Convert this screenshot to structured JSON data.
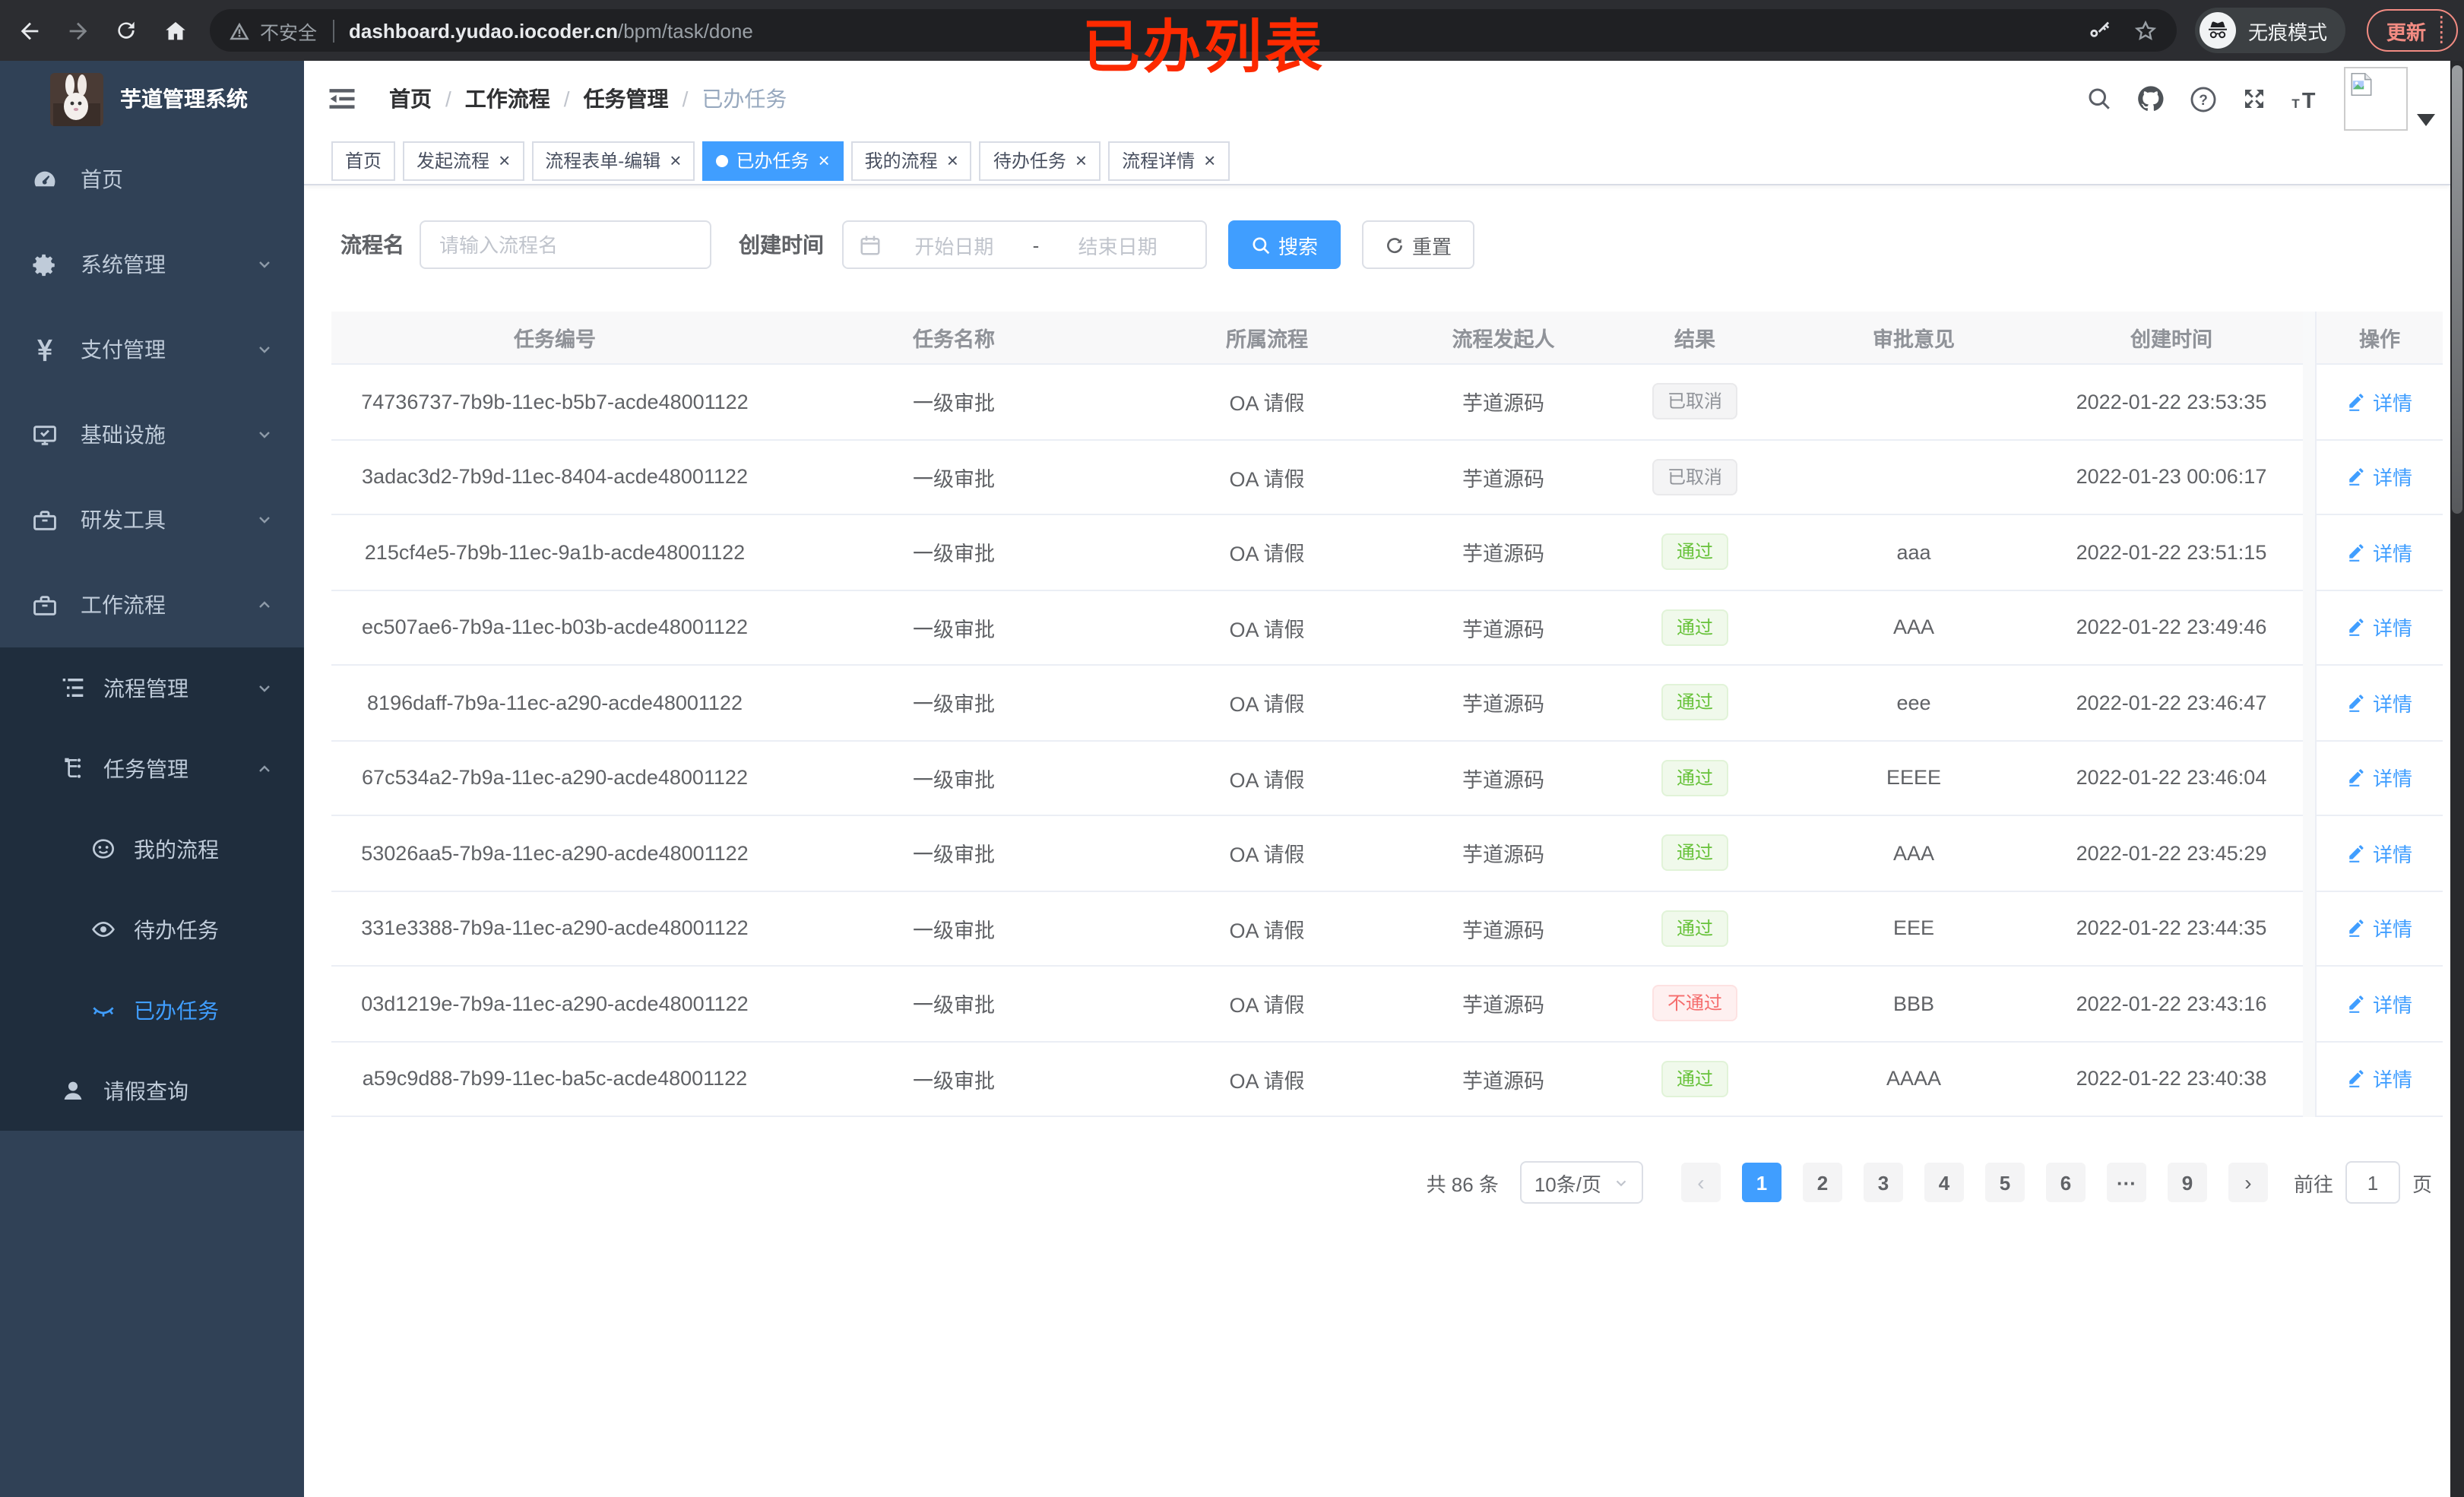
{
  "browser": {
    "security_label": "不安全",
    "url_host": "dashboard.yudao.iocoder.cn",
    "url_path": "/bpm/task/done",
    "incognito_label": "无痕模式",
    "update_label": "更新"
  },
  "annotation": {
    "text": "已办列表",
    "color": "#fd2a00"
  },
  "colors": {
    "accent": "#409eff",
    "success": "#67c23a",
    "danger": "#f56c6c",
    "info": "#909399",
    "sidebar_bg": "#304156",
    "submenu_bg": "#1f2d3d",
    "update": "#f28b82"
  },
  "sidebar": {
    "app_title": "芋道管理系统",
    "menu": [
      {
        "key": "home",
        "label": "首页",
        "icon": "dashboard-icon",
        "arrow": ""
      },
      {
        "key": "system",
        "label": "系统管理",
        "icon": "gear-icon",
        "arrow": "down"
      },
      {
        "key": "payment",
        "label": "支付管理",
        "icon": "yen-icon",
        "arrow": "down"
      },
      {
        "key": "infra",
        "label": "基础设施",
        "icon": "monitor-icon",
        "arrow": "down"
      },
      {
        "key": "devtools",
        "label": "研发工具",
        "icon": "toolbox-icon",
        "arrow": "down"
      },
      {
        "key": "workflow",
        "label": "工作流程",
        "icon": "toolbox-icon",
        "arrow": "up"
      }
    ],
    "submenu": [
      {
        "key": "process-mgmt",
        "label": "流程管理",
        "icon": "tree-table-icon",
        "arrow": "down",
        "indent": 2,
        "active": false
      },
      {
        "key": "task-mgmt",
        "label": "任务管理",
        "icon": "tree-icon",
        "arrow": "up",
        "indent": 2,
        "active": false
      },
      {
        "key": "my-process",
        "label": "我的流程",
        "icon": "face-icon",
        "arrow": "",
        "indent": 3,
        "active": false
      },
      {
        "key": "todo-tasks",
        "label": "待办任务",
        "icon": "eye-open-icon",
        "arrow": "",
        "indent": 3,
        "active": false
      },
      {
        "key": "done-tasks",
        "label": "已办任务",
        "icon": "eye-closed-icon",
        "arrow": "",
        "indent": 3,
        "active": true
      },
      {
        "key": "leave-query",
        "label": "请假查询",
        "icon": "user-icon",
        "arrow": "",
        "indent": 2,
        "active": false
      }
    ]
  },
  "header": {
    "breadcrumb": [
      "首页",
      "工作流程",
      "任务管理",
      "已办任务"
    ]
  },
  "tabs": [
    {
      "key": "home",
      "label": "首页",
      "closable": false,
      "active": false
    },
    {
      "key": "start-process",
      "label": "发起流程",
      "closable": true,
      "active": false
    },
    {
      "key": "form-edit",
      "label": "流程表单-编辑",
      "closable": true,
      "active": false
    },
    {
      "key": "done-tasks",
      "label": "已办任务",
      "closable": true,
      "active": true
    },
    {
      "key": "my-process",
      "label": "我的流程",
      "closable": true,
      "active": false
    },
    {
      "key": "todo-tasks",
      "label": "待办任务",
      "closable": true,
      "active": false
    },
    {
      "key": "process-detail",
      "label": "流程详情",
      "closable": true,
      "active": false
    }
  ],
  "filters": {
    "name_label": "流程名",
    "name_placeholder": "请输入流程名",
    "time_label": "创建时间",
    "start_placeholder": "开始日期",
    "range_separator": "-",
    "end_placeholder": "结束日期",
    "search_label": "搜索",
    "reset_label": "重置"
  },
  "table": {
    "columns": [
      "任务编号",
      "任务名称",
      "所属流程",
      "流程发起人",
      "结果",
      "审批意见",
      "创建时间",
      "操作"
    ],
    "action_label": "详情",
    "rows": [
      {
        "id": "74736737-7b9b-11ec-b5b7-acde48001122",
        "task_name": "一级审批",
        "process": "OA 请假",
        "starter": "芋道源码",
        "result": "已取消",
        "result_type": "info",
        "comment": "",
        "created": "2022-01-22 23:53:35"
      },
      {
        "id": "3adac3d2-7b9d-11ec-8404-acde48001122",
        "task_name": "一级审批",
        "process": "OA 请假",
        "starter": "芋道源码",
        "result": "已取消",
        "result_type": "info",
        "comment": "",
        "created": "2022-01-23 00:06:17"
      },
      {
        "id": "215cf4e5-7b9b-11ec-9a1b-acde48001122",
        "task_name": "一级审批",
        "process": "OA 请假",
        "starter": "芋道源码",
        "result": "通过",
        "result_type": "success",
        "comment": "aaa",
        "created": "2022-01-22 23:51:15"
      },
      {
        "id": "ec507ae6-7b9a-11ec-b03b-acde48001122",
        "task_name": "一级审批",
        "process": "OA 请假",
        "starter": "芋道源码",
        "result": "通过",
        "result_type": "success",
        "comment": "AAA",
        "created": "2022-01-22 23:49:46"
      },
      {
        "id": "8196daff-7b9a-11ec-a290-acde48001122",
        "task_name": "一级审批",
        "process": "OA 请假",
        "starter": "芋道源码",
        "result": "通过",
        "result_type": "success",
        "comment": "eee",
        "created": "2022-01-22 23:46:47"
      },
      {
        "id": "67c534a2-7b9a-11ec-a290-acde48001122",
        "task_name": "一级审批",
        "process": "OA 请假",
        "starter": "芋道源码",
        "result": "通过",
        "result_type": "success",
        "comment": "EEEE",
        "created": "2022-01-22 23:46:04"
      },
      {
        "id": "53026aa5-7b9a-11ec-a290-acde48001122",
        "task_name": "一级审批",
        "process": "OA 请假",
        "starter": "芋道源码",
        "result": "通过",
        "result_type": "success",
        "comment": "AAA",
        "created": "2022-01-22 23:45:29"
      },
      {
        "id": "331e3388-7b9a-11ec-a290-acde48001122",
        "task_name": "一级审批",
        "process": "OA 请假",
        "starter": "芋道源码",
        "result": "通过",
        "result_type": "success",
        "comment": "EEE",
        "created": "2022-01-22 23:44:35"
      },
      {
        "id": "03d1219e-7b9a-11ec-a290-acde48001122",
        "task_name": "一级审批",
        "process": "OA 请假",
        "starter": "芋道源码",
        "result": "不通过",
        "result_type": "danger",
        "comment": "BBB",
        "created": "2022-01-22 23:43:16"
      },
      {
        "id": "a59c9d88-7b99-11ec-ba5c-acde48001122",
        "task_name": "一级审批",
        "process": "OA 请假",
        "starter": "芋道源码",
        "result": "通过",
        "result_type": "success",
        "comment": "AAAA",
        "created": "2022-01-22 23:40:38"
      }
    ]
  },
  "pagination": {
    "total_text": "共 86 条",
    "page_size": "10条/页",
    "pages": [
      "1",
      "2",
      "3",
      "4",
      "5",
      "6",
      "···",
      "9"
    ],
    "active_page": "1",
    "goto_label": "前往",
    "goto_value": "1",
    "page_unit": "页"
  }
}
